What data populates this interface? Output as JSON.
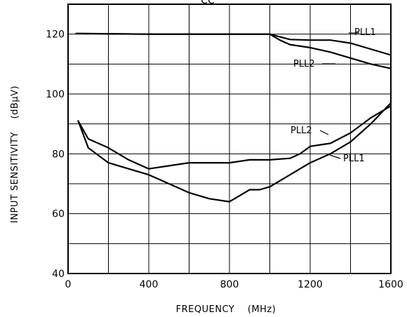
{
  "chart_data": {
    "type": "line",
    "title": "",
    "top_label_fragment": "CC",
    "xlabel": "FREQUENCY    (MHz)",
    "ylabel": "INPUT SENSITIVITY    (dBμV)",
    "xlim": [
      0,
      1600
    ],
    "ylim": [
      40,
      130
    ],
    "x_ticks": [
      0,
      400,
      800,
      1200,
      1600
    ],
    "y_ticks": [
      40,
      60,
      80,
      100,
      120
    ],
    "x_tick_labels": [
      "0",
      "400",
      "800",
      "1200",
      "1600"
    ],
    "y_tick_labels": [
      "40",
      "60",
      "80",
      "100",
      "120"
    ],
    "x_grid_step": 200,
    "y_grid_step": 10,
    "grid": true,
    "legend": "none",
    "series_labels": {
      "upper_pll1": "PLL1",
      "upper_pll2": "PLL2",
      "lower_pll2": "PLL2",
      "lower_pll1": "PLL1"
    },
    "series": [
      {
        "name": "PLL1",
        "group": "upper",
        "x": [
          40,
          200,
          400,
          600,
          800,
          1000,
          1100,
          1200,
          1300,
          1400,
          1500,
          1600
        ],
        "y": [
          120.2,
          120.1,
          120,
          120,
          120,
          120,
          118.2,
          118,
          118,
          117,
          115,
          113
        ]
      },
      {
        "name": "PLL2",
        "group": "upper",
        "x": [
          40,
          200,
          400,
          600,
          800,
          1000,
          1050,
          1100,
          1200,
          1300,
          1400,
          1500,
          1600
        ],
        "y": [
          120.2,
          120.1,
          120,
          120,
          120,
          120,
          118,
          116.5,
          115.5,
          114,
          112,
          110,
          108.5
        ]
      },
      {
        "name": "PLL2",
        "group": "lower",
        "x": [
          50,
          100,
          200,
          300,
          400,
          500,
          600,
          700,
          800,
          900,
          1000,
          1100,
          1150,
          1200,
          1250,
          1300,
          1400,
          1500,
          1600
        ],
        "y": [
          91,
          85,
          82,
          78,
          75,
          76,
          77,
          77,
          77,
          78,
          78,
          78.5,
          80,
          82.5,
          83,
          83.5,
          87,
          92,
          96
        ]
      },
      {
        "name": "PLL1",
        "group": "lower",
        "x": [
          50,
          100,
          200,
          300,
          400,
          500,
          600,
          700,
          800,
          850,
          900,
          950,
          1000,
          1100,
          1200,
          1300,
          1400,
          1500,
          1600
        ],
        "y": [
          91,
          82,
          77,
          75,
          73,
          70,
          67,
          65,
          64,
          66,
          68,
          68,
          69,
          73,
          77,
          80,
          84,
          90,
          97
        ]
      }
    ]
  }
}
